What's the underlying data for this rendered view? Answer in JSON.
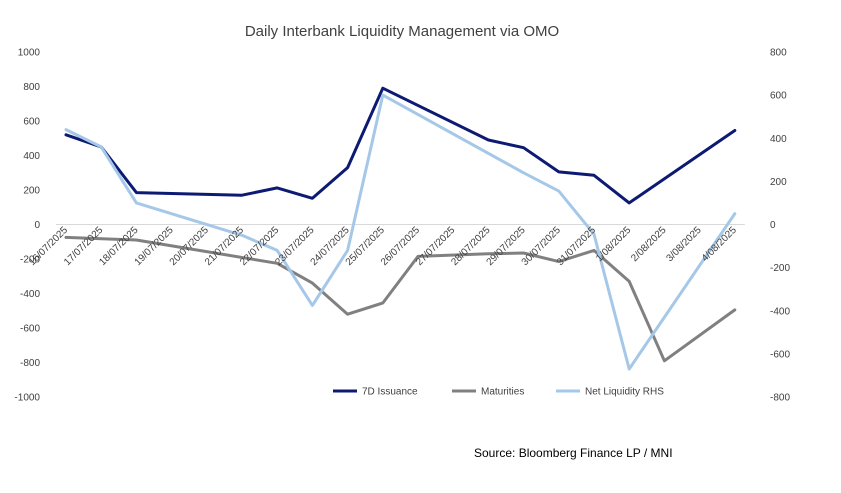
{
  "chart_data": {
    "type": "line",
    "title": "Daily Interbank Liquidity Management via OMO",
    "source": "Source: Bloomberg Finance LP / MNI",
    "categories": [
      "16/07/2025",
      "17/07/2025",
      "18/07/2025",
      "19/07/2025",
      "20/07/2025",
      "21/07/2025",
      "22/07/2025",
      "23/07/2025",
      "24/07/2025",
      "25/07/2025",
      "26/07/2025",
      "27/07/2025",
      "28/07/2025",
      "29/07/2025",
      "30/07/2025",
      "31/07/2025",
      "1/08/2025",
      "2/08/2025",
      "3/08/2025",
      "4/08/2025"
    ],
    "left_axis": {
      "min": -1000,
      "max": 1000,
      "ticks": [
        "1000",
        "800",
        "600",
        "400",
        "200",
        "0",
        "-200",
        "-400",
        "-600",
        "-800",
        "-1000"
      ]
    },
    "right_axis": {
      "min": -800,
      "max": 800,
      "ticks": [
        "800",
        "600",
        "400",
        "200",
        "0",
        "-200",
        "-400",
        "-600",
        "-800"
      ]
    },
    "series": [
      {
        "name": "7D Issuance",
        "axis": "left",
        "color": "#0d1a73",
        "points": [
          [
            0,
            520
          ],
          [
            1,
            450
          ],
          [
            2,
            185
          ],
          [
            5,
            170
          ],
          [
            6,
            212
          ],
          [
            7,
            152
          ],
          [
            8,
            330
          ],
          [
            9,
            790
          ],
          [
            12,
            490
          ],
          [
            13,
            445
          ],
          [
            14,
            305
          ],
          [
            15,
            285
          ],
          [
            16,
            125
          ],
          [
            19,
            545
          ]
        ]
      },
      {
        "name": "Maturities",
        "axis": "left",
        "color": "#808080",
        "points": [
          [
            0,
            -75
          ],
          [
            2,
            -90
          ],
          [
            6,
            -225
          ],
          [
            7,
            -340
          ],
          [
            8,
            -520
          ],
          [
            9,
            -455
          ],
          [
            10,
            -185
          ],
          [
            12,
            -170
          ],
          [
            13,
            -165
          ],
          [
            14,
            -215
          ],
          [
            15,
            -150
          ],
          [
            16,
            -330
          ],
          [
            17,
            -790
          ],
          [
            19,
            -495
          ]
        ]
      },
      {
        "name": "Net Liquidity RHS",
        "axis": "right",
        "color": "#a6c8e8",
        "points": [
          [
            0,
            440
          ],
          [
            1,
            360
          ],
          [
            2,
            100
          ],
          [
            5,
            -50
          ],
          [
            6,
            -120
          ],
          [
            7,
            -375
          ],
          [
            8,
            -120
          ],
          [
            9,
            600
          ],
          [
            13,
            240
          ],
          [
            14,
            155
          ],
          [
            15,
            -45
          ],
          [
            16,
            -670
          ],
          [
            19,
            50
          ]
        ]
      }
    ]
  }
}
